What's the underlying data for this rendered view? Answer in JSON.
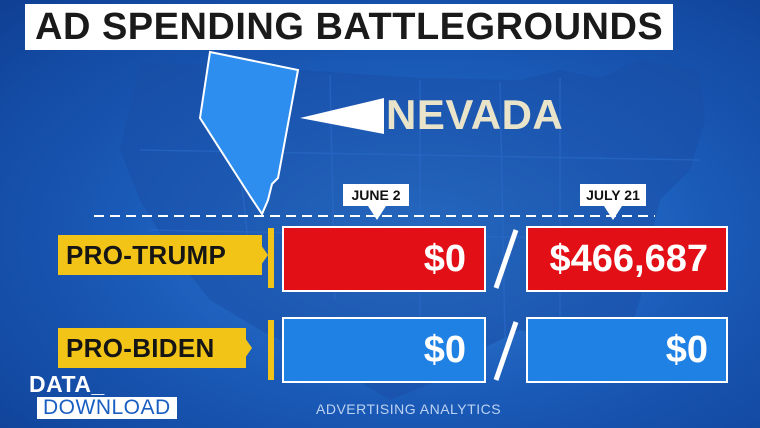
{
  "title": "AD SPENDING BATTLEGROUNDS",
  "state": {
    "name": "NEVADA",
    "icon": "nevada-state-shape"
  },
  "dates": [
    "JUNE 2",
    "JULY 21"
  ],
  "rows": [
    {
      "label": "PRO-TRUMP",
      "values": [
        "$0",
        "$466,687"
      ],
      "color": "#e20f17"
    },
    {
      "label": "PRO-BIDEN",
      "values": [
        "$0",
        "$0"
      ],
      "color": "#2081e5"
    }
  ],
  "source": "ADVERTISING ANALYTICS",
  "logo": {
    "line1": "DATA_",
    "line2": "DOWNLOAD"
  },
  "colors": {
    "accent": "#f2c417",
    "background": "#1b5fc0"
  }
}
